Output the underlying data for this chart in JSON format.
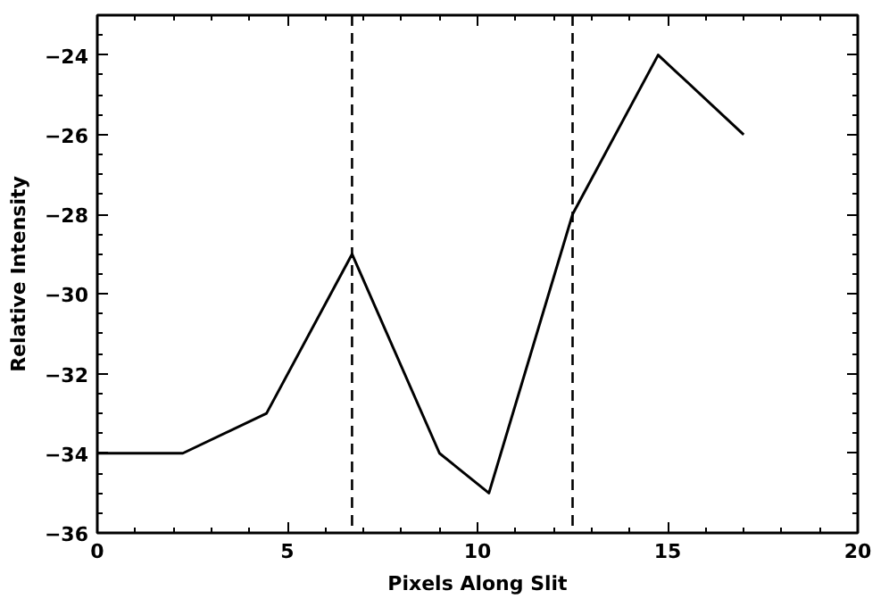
{
  "chart_data": {
    "type": "line",
    "xlabel": "Pixels Along Slit",
    "ylabel": "Relative Intensity",
    "x": [
      0,
      2.25,
      4.45,
      6.7,
      9.0,
      10.3,
      12.5,
      14.75,
      17.0
    ],
    "series": [
      {
        "color": "#000000",
        "values": [
          -34,
          -34,
          -33,
          -29,
          -34,
          -35,
          -28,
          -24,
          -26
        ]
      }
    ],
    "xlim": [
      0,
      20
    ],
    "xticks": [
      0,
      5,
      10,
      15,
      20
    ],
    "ylim": [
      -36,
      -23
    ],
    "yticks": [
      -36,
      -34,
      -32,
      -30,
      -28,
      -26,
      -24
    ],
    "ref_lines": [
      {
        "axis": "x",
        "value": 6.7,
        "line_style": "dashed",
        "color": "#000000"
      },
      {
        "axis": "x",
        "value": 12.5,
        "line_style": "dashed",
        "color": "#000000"
      }
    ],
    "grid": false,
    "line_style": "solid",
    "marker": "none"
  }
}
